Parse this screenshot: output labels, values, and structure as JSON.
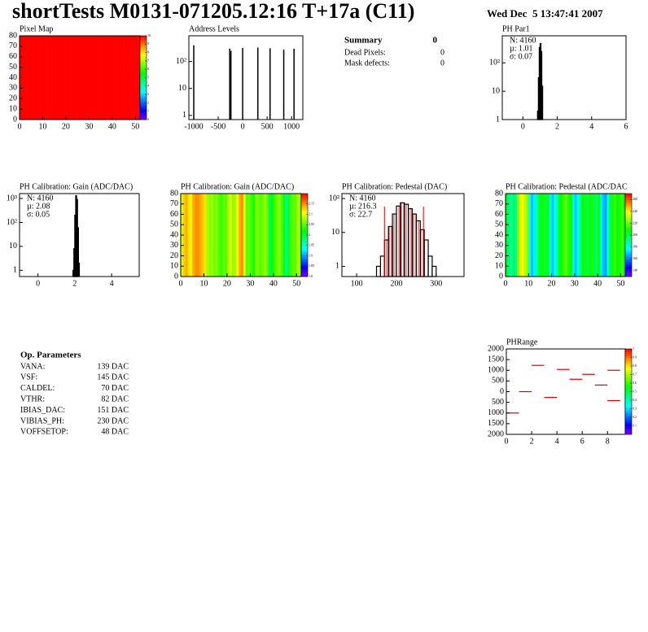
{
  "header": {
    "title": "shortTests M0131-071205.12:16 T+17a (C11)",
    "date": "Wed Dec  5 13:47:41 2007"
  },
  "summary": {
    "title": "Summary",
    "value": "0",
    "rows": [
      [
        "Dead Pixels:",
        "0"
      ],
      [
        "Mask defects:",
        "0"
      ]
    ]
  },
  "op_parameters": {
    "title": "Op. Parameters",
    "rows": [
      [
        "VANA:",
        "139 DAC"
      ],
      [
        "VSF:",
        "145 DAC"
      ],
      [
        "CALDEL:",
        "70 DAC"
      ],
      [
        "VTHR:",
        "82 DAC"
      ],
      [
        "IBIAS_DAC:",
        "151 DAC"
      ],
      [
        "VIBIAS_PH:",
        "230 DAC"
      ],
      [
        "VOFFSETOP:",
        "48 DAC"
      ]
    ]
  },
  "chart_data": [
    {
      "type": "heatmap",
      "title": "Pixel Map",
      "xlim": [
        0,
        52
      ],
      "ylim": [
        0,
        80
      ],
      "xticks": [
        0,
        10,
        20,
        30,
        40,
        50
      ],
      "yticks": [
        0,
        10,
        20,
        30,
        40,
        50,
        60,
        70,
        80
      ],
      "zlim": [
        0,
        10
      ],
      "zticks": [
        0,
        1,
        2,
        3,
        4,
        5,
        6,
        7,
        8,
        9,
        10
      ],
      "values": [
        10,
        10,
        10,
        10,
        10,
        10,
        10,
        10,
        10,
        10,
        10,
        10,
        10,
        10,
        10,
        10,
        10,
        10,
        10,
        10,
        10,
        10,
        10,
        10,
        10,
        10,
        10,
        10,
        10,
        10,
        10,
        10,
        10,
        10,
        10,
        10,
        10,
        10,
        10,
        10,
        10,
        10,
        10,
        10,
        10,
        10,
        10,
        10,
        10,
        10,
        10,
        10
      ]
    },
    {
      "type": "stem",
      "title": "Address Levels",
      "log_y": true,
      "xlim": [
        -1100,
        1230
      ],
      "ylim": [
        0.7,
        900
      ],
      "xticks": [
        -1000,
        -500,
        0,
        500,
        1000
      ],
      "yticks": [
        1,
        10,
        {
          "value": 100,
          "label": "10²"
        }
      ],
      "x": [
        -1000,
        -265,
        -240,
        0,
        310,
        560,
        840,
        1050
      ],
      "values": [
        400,
        300,
        250,
        320,
        330,
        310,
        280,
        300
      ]
    },
    {
      "type": "histogram",
      "title": "PH Par1",
      "log_y": true,
      "xlim": [
        -1.2,
        6
      ],
      "ylim": [
        1,
        900
      ],
      "xticks": [
        0,
        2,
        4,
        6
      ],
      "yticks": [
        1,
        10,
        {
          "value": 100,
          "label": "10²"
        }
      ],
      "stats": [
        "N: 4160",
        "µ: 1.01",
        "σ: 0.07"
      ],
      "stats_colors": [
        "#000000",
        "#000000",
        "#000000"
      ],
      "bins": [
        0.85,
        0.9,
        0.95,
        1.0,
        1.05,
        1.1,
        1.15,
        1.2
      ],
      "values": [
        2,
        30,
        350,
        480,
        250,
        15,
        1
      ]
    },
    {
      "type": "histogram",
      "title": "PH Calibration: Gain (ADC/DAC)",
      "log_y": true,
      "xlim": [
        -1,
        5.5
      ],
      "ylim": [
        0.55,
        1600
      ],
      "xticks": [
        0,
        2,
        4
      ],
      "yticks": [
        1,
        10,
        {
          "value": 100,
          "label": "10²"
        },
        {
          "value": 1000,
          "label": "10³"
        }
      ],
      "stats": [
        "N: 4160",
        "µ: 2.08",
        "σ: 0.05"
      ],
      "stats_colors": [
        "#000000",
        "#000000",
        "#000000"
      ],
      "bins": [
        1.9,
        1.95,
        2.0,
        2.05,
        2.1,
        2.15,
        2.2,
        2.25
      ],
      "values": [
        1,
        8,
        200,
        1300,
        900,
        60,
        2
      ]
    },
    {
      "type": "heatmap",
      "title": "PH Calibration: Gain (ADC/DAC)",
      "xlim": [
        0,
        52
      ],
      "ylim": [
        0,
        80
      ],
      "xticks": [
        0,
        10,
        20,
        30,
        40,
        50
      ],
      "yticks": [
        0,
        10,
        20,
        30,
        40,
        50,
        60,
        70,
        80
      ],
      "zlim": [
        1.8,
        2.2
      ],
      "zticks": [
        1.8,
        1.85,
        1.9,
        1.95,
        2,
        2.05,
        2.1,
        2.15
      ],
      "values": [
        2.1,
        2.13,
        2.14,
        2.12,
        2.1,
        2.14,
        2.15,
        2.15,
        2.14,
        2.13,
        2.12,
        2.08,
        2.07,
        2.08,
        2.06,
        2.07,
        2.05,
        2.04,
        2.06,
        2.05,
        2.08,
        2.1,
        2.07,
        2.08,
        2.11,
        2.14,
        2.15,
        2.1,
        2.05,
        2.06,
        2.04,
        2.03,
        2.07,
        2.06,
        2.05,
        2.06,
        2.08,
        2.05,
        2.0,
        2.02,
        2.04,
        2.06,
        2.07,
        2.05,
        2.03,
        1.98,
        2.0,
        2.04,
        2.06,
        2.05,
        2.08,
        2.07
      ]
    },
    {
      "type": "histogram",
      "title": "PH Calibration: Pedestal (DAC)",
      "log_y": true,
      "xlim": [
        63,
        370
      ],
      "ylim": [
        0.5,
        140
      ],
      "xticks": [
        100,
        200,
        300
      ],
      "yticks": [
        1,
        10,
        {
          "value": 100,
          "label": "10²"
        }
      ],
      "stats": [
        "N: 4160",
        "µ: 216.3",
        "σ: 22.7"
      ],
      "stats_colors": [
        "#000000",
        "#e00000",
        "#e00000"
      ],
      "cut_lines": [
        170,
        268
      ],
      "bins": [
        150,
        160,
        170,
        180,
        190,
        200,
        210,
        220,
        230,
        240,
        250,
        260,
        270,
        280,
        290,
        300
      ],
      "values": [
        1,
        2,
        6,
        15,
        35,
        60,
        75,
        68,
        50,
        35,
        22,
        12,
        6,
        2,
        1
      ]
    },
    {
      "type": "heatmap",
      "title": "PH Calibration: Pedestal (ADC/DAC",
      "xlim": [
        0,
        52
      ],
      "ylim": [
        0,
        80
      ],
      "xticks": [
        0,
        10,
        20,
        30,
        40,
        50
      ],
      "yticks": [
        0,
        10,
        20,
        30,
        40,
        50,
        60,
        70,
        80
      ],
      "zlim": [
        130,
        270
      ],
      "zticks": [
        140,
        160,
        180,
        200,
        220,
        240,
        260
      ],
      "values": [
        205,
        195,
        185,
        200,
        190,
        225,
        235,
        240,
        230,
        225,
        180,
        170,
        175,
        185,
        200,
        205,
        210,
        200,
        205,
        175,
        170,
        180,
        185,
        205,
        210,
        215,
        220,
        210,
        205,
        175,
        170,
        180,
        190,
        205,
        210,
        200,
        205,
        210,
        200,
        195,
        205,
        175,
        170,
        165,
        180,
        200,
        210,
        215,
        205,
        210,
        215,
        205
      ]
    },
    {
      "type": "segments",
      "title": "PHRange",
      "xlim": [
        0,
        9.4
      ],
      "ylim": [
        -2000,
        2000
      ],
      "xticks": [
        0,
        2,
        4,
        6,
        8
      ],
      "yticks": [
        {
          "value": -2000,
          "label": "2000"
        },
        {
          "value": -1000,
          "label": "1000"
        },
        0,
        500,
        1000,
        1500,
        2000,
        {
          "value": -1500,
          "label": "1500"
        },
        {
          "value": -500,
          "label": "500"
        }
      ],
      "zlim": [
        0,
        1
      ],
      "zticks": [
        0.1,
        0.2,
        0.3,
        0.4,
        0.5,
        0.6,
        0.7,
        0.8,
        0.9,
        1
      ],
      "x": [
        0,
        1,
        2,
        3,
        4,
        5,
        6,
        7,
        8,
        8
      ],
      "values": [
        -1000,
        0,
        1230,
        -270,
        1040,
        580,
        810,
        310,
        1000,
        -420
      ],
      "color": "#e00000"
    }
  ]
}
